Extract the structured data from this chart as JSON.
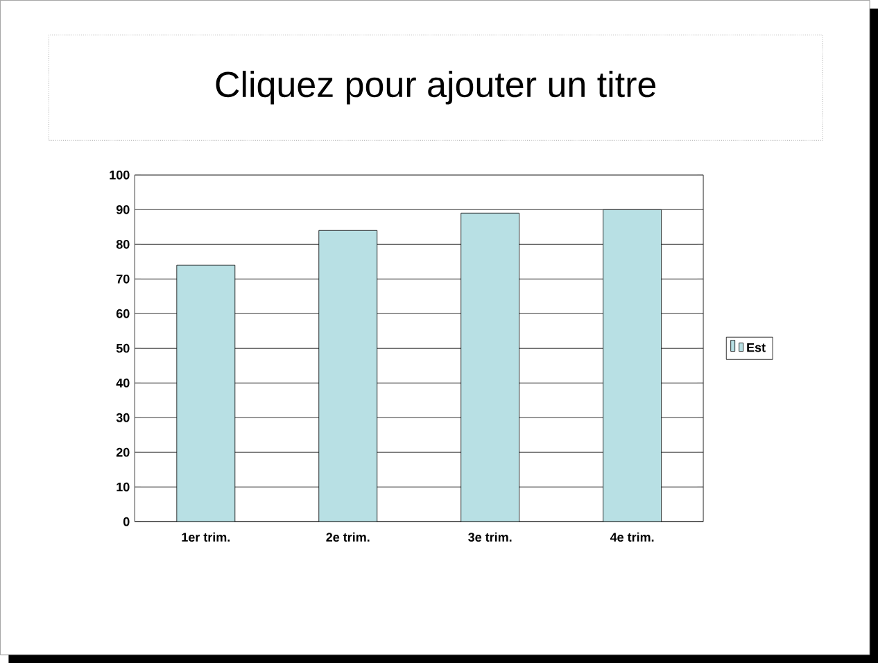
{
  "chart_data": {
    "type": "bar",
    "title": "Cliquez pour ajouter un titre",
    "categories": [
      "1er  trim.",
      "2e  trim.",
      "3e  trim.",
      "4e  trim."
    ],
    "series": [
      {
        "name": "Est",
        "color": "#b8e0e4",
        "values": [
          74,
          84,
          89,
          90
        ]
      }
    ],
    "ylim": [
      0,
      100
    ],
    "yticks": [
      0,
      10,
      20,
      30,
      40,
      50,
      60,
      70,
      80,
      90,
      100
    ],
    "grid": "y",
    "legend": "right"
  }
}
